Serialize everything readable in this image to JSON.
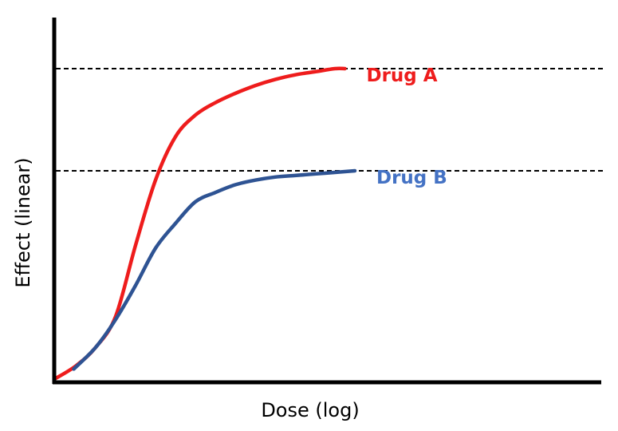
{
  "chart_data": {
    "type": "line",
    "xlabel": "Dose (log)",
    "ylabel": "Effect (linear)",
    "xlim": [
      0,
      100
    ],
    "ylim": [
      0,
      100
    ],
    "grid": false,
    "legend": "inline-right",
    "reference_lines": [
      {
        "axis": "y",
        "value": 100,
        "style": "dashed",
        "color": "#000000"
      },
      {
        "axis": "y",
        "value": 67,
        "style": "dashed",
        "color": "#000000"
      }
    ],
    "series": [
      {
        "name": "Drug A",
        "color": "#ee1c1c",
        "x": [
          0,
          5,
          10,
          15,
          20,
          25,
          30,
          35,
          40,
          45,
          50,
          55,
          60,
          65,
          70,
          72.5
        ],
        "y": [
          0,
          4,
          10,
          20,
          43,
          64,
          78,
          85,
          89,
          92,
          94.5,
          96.5,
          98,
          99,
          100,
          100
        ]
      },
      {
        "name": "Drug B",
        "color": "#2e5393",
        "x": [
          4.5,
          10,
          15,
          20,
          25,
          30,
          35,
          40,
          45,
          50,
          55,
          60,
          65,
          70,
          75
        ],
        "y": [
          3,
          10,
          19,
          30,
          42,
          50,
          57,
          60,
          62.5,
          64,
          65,
          65.5,
          66,
          66.5,
          67
        ]
      }
    ]
  }
}
